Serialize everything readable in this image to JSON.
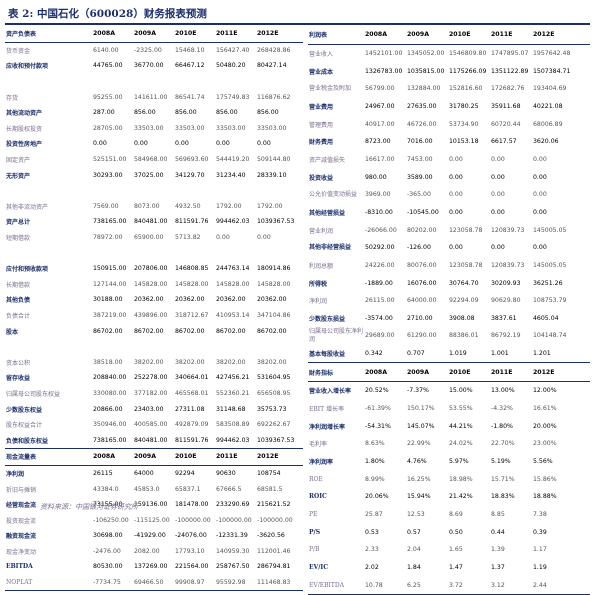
{
  "title": "表 2:  中国石化（600028）财务报表预测",
  "footer": "资料来源：中国银河证券研究所",
  "left": [
    {
      "style": "hdr first",
      "cells": [
        "资产负债表",
        "2008A",
        "2009A",
        "2010E",
        "2011E",
        "2012E"
      ]
    },
    {
      "style": "",
      "cells": [
        "货币资金",
        "6140.00",
        "-2325.00",
        "15468.10",
        "156427.40",
        "268428.86"
      ]
    },
    {
      "style": "b",
      "cells": [
        "应收和预付款项",
        "44765.00",
        "36770.00",
        "66467.12",
        "50480.20",
        "80427.14"
      ]
    },
    {
      "style": "",
      "cells": [
        "",
        "",
        "",
        "",
        "",
        ""
      ]
    },
    {
      "style": "",
      "cells": [
        "存货",
        "95255.00",
        "141611.00",
        "86541.74",
        "175749.83",
        "116876.62"
      ]
    },
    {
      "style": "b",
      "cells": [
        "其他流动资产",
        "287.00",
        "856.00",
        "856.00",
        "856.00",
        "856.00"
      ]
    },
    {
      "style": "",
      "cells": [
        "长期股权投资",
        "28705.00",
        "33503.00",
        "33503.00",
        "33503.00",
        "33503.00"
      ]
    },
    {
      "style": "b",
      "cells": [
        "投资性房地产",
        "0.00",
        "0.00",
        "0.00",
        "0.00",
        "0.00"
      ]
    },
    {
      "style": "",
      "cells": [
        "固定资产",
        "525151.00",
        "584968.00",
        "569693.60",
        "544419.20",
        "509144.80"
      ]
    },
    {
      "style": "b",
      "cells": [
        "无形资产",
        "30293.00",
        "37025.00",
        "34129.70",
        "31234.40",
        "28339.10"
      ]
    },
    {
      "style": "",
      "cells": [
        "",
        "",
        "",
        "",
        "",
        ""
      ]
    },
    {
      "style": "",
      "cells": [
        "其他非流动资产",
        "7569.00",
        "8073.00",
        "4932.50",
        "1792.00",
        "1792.00"
      ]
    },
    {
      "style": "b",
      "cells": [
        "资产总计",
        "738165.00",
        "840481.00",
        "811591.76",
        "994462.03",
        "1039367.53"
      ]
    },
    {
      "style": "",
      "cells": [
        "短期借款",
        "78972.00",
        "65900.00",
        "5713.82",
        "0.00",
        "0.00"
      ]
    },
    {
      "style": "",
      "cells": [
        "",
        "",
        "",
        "",
        "",
        ""
      ]
    },
    {
      "style": "b",
      "cells": [
        "应付和预收款项",
        "150915.00",
        "207806.00",
        "146808.85",
        "244763.14",
        "180914.86"
      ]
    },
    {
      "style": "",
      "cells": [
        "长期借款",
        "127144.00",
        "145828.00",
        "145828.00",
        "145828.00",
        "145828.00"
      ]
    },
    {
      "style": "b",
      "cells": [
        "其他负债",
        "30188.00",
        "20362.00",
        "20362.00",
        "20362.00",
        "20362.00"
      ]
    },
    {
      "style": "",
      "cells": [
        "负债合计",
        "387219.00",
        "439896.00",
        "318712.67",
        "410953.14",
        "347104.86"
      ]
    },
    {
      "style": "b",
      "cells": [
        "股本",
        "86702.00",
        "86702.00",
        "86702.00",
        "86702.00",
        "86702.00"
      ]
    },
    {
      "style": "",
      "cells": [
        "",
        "",
        "",
        "",
        "",
        ""
      ]
    },
    {
      "style": "",
      "cells": [
        "资本公积",
        "38518.00",
        "38202.00",
        "38202.00",
        "38202.00",
        "38202.00"
      ]
    },
    {
      "style": "b",
      "cells": [
        "留存收益",
        "208840.00",
        "252278.00",
        "340664.01",
        "427456.21",
        "531604.95"
      ]
    },
    {
      "style": "",
      "cells": [
        "归属母公司股东权益",
        "330080.00",
        "377182.00",
        "465568.01",
        "552360.21",
        "656508.95"
      ]
    },
    {
      "style": "b",
      "cells": [
        "少数股东权益",
        "20866.00",
        "23403.00",
        "27311.08",
        "31148.68",
        "35753.73"
      ]
    },
    {
      "style": "",
      "cells": [
        "股东权益合计",
        "350946.00",
        "400585.00",
        "492879.09",
        "583508.89",
        "692262.67"
      ]
    },
    {
      "style": "b",
      "cells": [
        "负债和股东权益",
        "738165.00",
        "840481.00",
        "811591.76",
        "994462.03",
        "1039367.53"
      ]
    },
    {
      "style": "hdr",
      "cells": [
        "现金流量表",
        "2008A",
        "2009A",
        "2010E",
        "2011E",
        "2012E"
      ]
    },
    {
      "style": "b",
      "cells": [
        "净利润",
        "26115",
        "64000",
        "92294",
        "90630",
        "108754"
      ]
    },
    {
      "style": "",
      "cells": [
        "折旧与摊销",
        "43384.0",
        "45853.0",
        "65837.1",
        "67666.5",
        "68581.5"
      ]
    },
    {
      "style": "b",
      "cells": [
        "经营现金流",
        "73155.00",
        "159136.00",
        "181478.00",
        "233290.69",
        "215621.52"
      ]
    },
    {
      "style": "",
      "cells": [
        "投资现金流",
        "-106250.00",
        "-115125.00",
        "-100000.00",
        "-100000.00",
        "-100000.00"
      ]
    },
    {
      "style": "b",
      "cells": [
        "融资现金流",
        "30698.00",
        "-41929.00",
        "-24076.00",
        "-12331.39",
        "-3620.56"
      ]
    },
    {
      "style": "",
      "cells": [
        "现金净变动",
        "-2476.00",
        "2082.00",
        "17793.10",
        "140959.30",
        "112001.46"
      ]
    },
    {
      "style": "b",
      "cells": [
        "EBITDA",
        "80530.00",
        "137269.00",
        "221564.00",
        "258767.50",
        "286794.81"
      ]
    },
    {
      "style": "last",
      "cells": [
        "NOPLAT",
        "-7734.75",
        "69466.50",
        "99908.97",
        "95592.98",
        "111468.83"
      ]
    }
  ],
  "right": [
    {
      "style": "hdr first",
      "cells": [
        "利润表",
        "2008A",
        "2009A",
        "2010E",
        "2011E",
        "2012E"
      ]
    },
    {
      "style": "",
      "cells": [
        "营业收入",
        "1452101.00",
        "1345052.00",
        "1546809.80",
        "1747895.07",
        "1957642.48"
      ]
    },
    {
      "style": "b",
      "cells": [
        "营业成本",
        "1326783.00",
        "1035815.00",
        "1175266.09",
        "1351122.89",
        "1507384.71"
      ]
    },
    {
      "style": "wrap",
      "cells": [
        "营业税金及附加",
        "56799.00",
        "132884.00",
        "152816.60",
        "172682.76",
        "193404.69"
      ]
    },
    {
      "style": "b",
      "cells": [
        "营业费用",
        "24967.00",
        "27635.00",
        "31780.25",
        "35911.68",
        "40221.08"
      ]
    },
    {
      "style": "",
      "cells": [
        "管理费用",
        "40917.00",
        "46726.00",
        "53734.90",
        "60720.44",
        "68006.89"
      ]
    },
    {
      "style": "b",
      "cells": [
        "财务费用",
        "8723.00",
        "7016.00",
        "10153.18",
        "6617.57",
        "3620.06"
      ]
    },
    {
      "style": "",
      "cells": [
        "资产减值损失",
        "16617.00",
        "7453.00",
        "0.00",
        "0.00",
        "0.00"
      ]
    },
    {
      "style": "b",
      "cells": [
        "投资收益",
        "980.00",
        "3589.00",
        "0.00",
        "0.00",
        "0.00"
      ]
    },
    {
      "style": "wrap",
      "cells": [
        "公允价值变动损益",
        "3969.00",
        "-365.00",
        "0.00",
        "0.00",
        "0.00"
      ]
    },
    {
      "style": "b",
      "cells": [
        "其他经营损益",
        "-8310.00",
        "-10545.00",
        "0.00",
        "0.00",
        "0.00"
      ]
    },
    {
      "style": "",
      "cells": [
        "营业利润",
        "-26066.00",
        "80202.00",
        "123058.78",
        "120839.73",
        "145005.05"
      ]
    },
    {
      "style": "b wrap",
      "cells": [
        "其他非经营损益",
        "50292.00",
        "-126.00",
        "0.00",
        "0.00",
        "0.00"
      ]
    },
    {
      "style": "",
      "cells": [
        "利润总额",
        "24226.00",
        "80076.00",
        "123058.78",
        "120839.73",
        "145005.05"
      ]
    },
    {
      "style": "b",
      "cells": [
        "所得税",
        "-1889.00",
        "16076.00",
        "30764.70",
        "30209.93",
        "36251.26"
      ]
    },
    {
      "style": "",
      "cells": [
        "净利润",
        "26115.00",
        "64000.00",
        "92294.09",
        "90629.80",
        "108753.79"
      ]
    },
    {
      "style": "b",
      "cells": [
        "少数股东损益",
        "-3574.00",
        "2710.00",
        "3908.08",
        "3837.61",
        "4605.04"
      ]
    },
    {
      "style": "wrap",
      "cells": [
        "归属母公司股东净利润",
        "29689.00",
        "61290.00",
        "88386.01",
        "86792.19",
        "104148.74"
      ]
    },
    {
      "style": "b",
      "cells": [
        "基本每股收益",
        "0.342",
        "0.707",
        "1.019",
        "1.001",
        "1.201"
      ]
    },
    {
      "style": "hdr",
      "cells": [
        "财务指标",
        "2008A",
        "2009A",
        "2010E",
        "2011E",
        "2012E"
      ]
    },
    {
      "style": "b",
      "cells": [
        "营业收入增长率",
        "20.52%",
        "-7.37%",
        "15.00%",
        "13.00%",
        "12.00%"
      ]
    },
    {
      "style": "",
      "cells": [
        "EBIT 增长率",
        "-61.39%",
        "150.17%",
        "53.55%",
        "-4.32%",
        "16.61%"
      ]
    },
    {
      "style": "b",
      "cells": [
        "净利润增长率",
        "-54.31%",
        "145.07%",
        "44.21%",
        "-1.80%",
        "20.00%"
      ]
    },
    {
      "style": "",
      "cells": [
        "毛利率",
        "8.63%",
        "22.99%",
        "24.02%",
        "22.70%",
        "23.00%"
      ]
    },
    {
      "style": "b",
      "cells": [
        "净利润率",
        "1.80%",
        "4.76%",
        "5.97%",
        "5.19%",
        "5.56%"
      ]
    },
    {
      "style": "",
      "cells": [
        "ROE",
        "8.99%",
        "16.25%",
        "18.98%",
        "15.71%",
        "15.86%"
      ]
    },
    {
      "style": "b",
      "cells": [
        "ROIC",
        "20.06%",
        "15.94%",
        "21.42%",
        "18.83%",
        "18.88%"
      ]
    },
    {
      "style": "",
      "cells": [
        "PE",
        "25.87",
        "12.53",
        "8.69",
        "8.85",
        "7.38"
      ]
    },
    {
      "style": "b",
      "cells": [
        "P/S",
        "0.53",
        "0.57",
        "0.50",
        "0.44",
        "0.39"
      ]
    },
    {
      "style": "",
      "cells": [
        "P/B",
        "2.33",
        "2.04",
        "1.65",
        "1.39",
        "1.17"
      ]
    },
    {
      "style": "b",
      "cells": [
        "EV/IC",
        "2.02",
        "1.84",
        "1.47",
        "1.37",
        "1.19"
      ]
    },
    {
      "style": "last",
      "cells": [
        "EV/EBITDA",
        "10.78",
        "6.25",
        "3.72",
        "3.12",
        "2.44"
      ]
    }
  ]
}
